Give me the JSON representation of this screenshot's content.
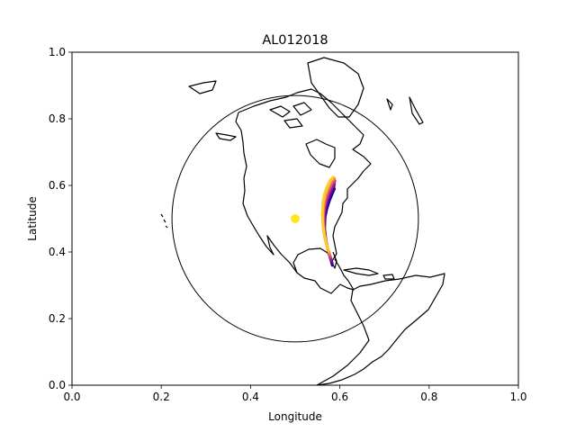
{
  "chart_data": {
    "type": "line",
    "title": "AL012018",
    "xlabel": "Longitude",
    "ylabel": "Latitude",
    "xlim": [
      0,
      1
    ],
    "ylim": [
      0,
      1
    ],
    "xticks": [
      "0.0",
      "0.2",
      "0.4",
      "0.6",
      "0.8",
      "1.0"
    ],
    "yticks": [
      "0.0",
      "0.2",
      "0.4",
      "0.6",
      "0.8",
      "1.0"
    ],
    "grid": false,
    "legend": "none",
    "globe": {
      "center": [
        0.5,
        0.5
      ],
      "radius": 0.37,
      "outline_color": "#000000",
      "coastline_color": "#000000"
    },
    "center_marker": {
      "x": 0.5,
      "y": 0.5,
      "color": "#fde725"
    },
    "colormap": "plasma",
    "series": [
      {
        "color": "#0d0887",
        "x": [
          0.583,
          0.579,
          0.574,
          0.569,
          0.566,
          0.567,
          0.571,
          0.577,
          0.583,
          0.588
        ],
        "y": [
          0.36,
          0.38,
          0.405,
          0.435,
          0.47,
          0.505,
          0.53,
          0.555,
          0.575,
          0.59
        ]
      },
      {
        "color": "#41049d",
        "x": [
          0.583,
          0.578,
          0.573,
          0.568,
          0.565,
          0.566,
          0.57,
          0.576,
          0.582,
          0.587
        ],
        "y": [
          0.365,
          0.385,
          0.41,
          0.44,
          0.475,
          0.51,
          0.537,
          0.562,
          0.582,
          0.597
        ]
      },
      {
        "color": "#6a00a8",
        "x": [
          0.582,
          0.577,
          0.572,
          0.567,
          0.565,
          0.566,
          0.57,
          0.576,
          0.582,
          0.588
        ],
        "y": [
          0.37,
          0.39,
          0.415,
          0.445,
          0.48,
          0.515,
          0.543,
          0.568,
          0.588,
          0.603
        ]
      },
      {
        "color": "#8f0da4",
        "x": [
          0.581,
          0.576,
          0.571,
          0.566,
          0.564,
          0.565,
          0.569,
          0.575,
          0.582,
          0.588
        ],
        "y": [
          0.375,
          0.395,
          0.42,
          0.45,
          0.485,
          0.52,
          0.548,
          0.573,
          0.594,
          0.609
        ]
      },
      {
        "color": "#b12a90",
        "x": [
          0.58,
          0.575,
          0.57,
          0.566,
          0.564,
          0.565,
          0.569,
          0.575,
          0.582,
          0.589
        ],
        "y": [
          0.38,
          0.4,
          0.425,
          0.455,
          0.49,
          0.525,
          0.553,
          0.578,
          0.598,
          0.613
        ]
      },
      {
        "color": "#cc4778",
        "x": [
          0.579,
          0.574,
          0.569,
          0.565,
          0.563,
          0.564,
          0.568,
          0.574,
          0.581,
          0.588
        ],
        "y": [
          0.385,
          0.405,
          0.43,
          0.46,
          0.495,
          0.53,
          0.558,
          0.583,
          0.603,
          0.618
        ]
      },
      {
        "color": "#e16462",
        "x": [
          0.578,
          0.573,
          0.568,
          0.564,
          0.562,
          0.564,
          0.568,
          0.574,
          0.581,
          0.588
        ],
        "y": [
          0.39,
          0.41,
          0.435,
          0.465,
          0.5,
          0.535,
          0.563,
          0.588,
          0.607,
          0.62
        ]
      },
      {
        "color": "#f2844b",
        "x": [
          0.577,
          0.572,
          0.567,
          0.563,
          0.562,
          0.563,
          0.567,
          0.573,
          0.58,
          0.587
        ],
        "y": [
          0.395,
          0.415,
          0.44,
          0.47,
          0.505,
          0.54,
          0.568,
          0.592,
          0.61,
          0.622
        ]
      },
      {
        "color": "#fca636",
        "x": [
          0.576,
          0.571,
          0.566,
          0.563,
          0.561,
          0.563,
          0.567,
          0.573,
          0.579,
          0.586
        ],
        "y": [
          0.4,
          0.42,
          0.445,
          0.475,
          0.51,
          0.545,
          0.572,
          0.595,
          0.613,
          0.624
        ]
      },
      {
        "color": "#fcce25",
        "x": [
          0.575,
          0.57,
          0.566,
          0.562,
          0.561,
          0.562,
          0.566,
          0.572,
          0.578,
          0.585
        ],
        "y": [
          0.405,
          0.425,
          0.45,
          0.48,
          0.515,
          0.55,
          0.576,
          0.598,
          0.615,
          0.625
        ]
      }
    ]
  }
}
